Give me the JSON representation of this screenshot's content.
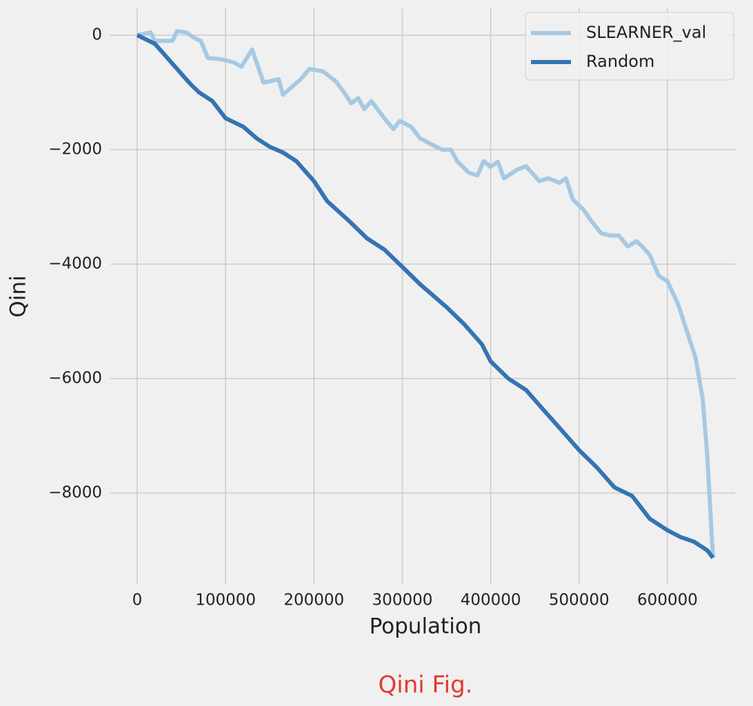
{
  "chart_data": {
    "type": "line",
    "xlabel": "Population",
    "ylabel": "Qini",
    "caption": "Qini Fig.",
    "xlim": [
      -30400,
      676500
    ],
    "ylim": [
      -9600,
      470
    ],
    "xticks": [
      0,
      100000,
      200000,
      300000,
      400000,
      500000,
      600000
    ],
    "yticks": [
      0,
      {
        "value": -2000,
        "label": "−2000"
      },
      {
        "value": -4000,
        "label": "−4000"
      },
      {
        "value": -6000,
        "label": "−6000"
      },
      {
        "value": -8000,
        "label": "−8000"
      }
    ],
    "grid": true,
    "legend": "upper right",
    "series": [
      {
        "name": "SLEARNER_val",
        "color": "#a6c9e3",
        "x": [
          0,
          15000,
          20000,
          30000,
          40000,
          45000,
          55000,
          65000,
          72000,
          80000,
          95000,
          110000,
          118000,
          130000,
          143000,
          160000,
          165000,
          185000,
          195000,
          210000,
          225000,
          235000,
          242000,
          250000,
          257000,
          265000,
          280000,
          290000,
          297000,
          310000,
          320000,
          332000,
          345000,
          355000,
          362000,
          375000,
          385000,
          392000,
          400000,
          408000,
          415000,
          430000,
          440000,
          455000,
          465000,
          478000,
          485000,
          493000,
          505000,
          515000,
          525000,
          535000,
          545000,
          555000,
          565000,
          572000,
          580000,
          590000,
          600000,
          612000,
          622000,
          632000,
          640000,
          645000,
          651500
        ],
        "values": [
          0,
          50,
          -100,
          -100,
          -100,
          70,
          50,
          -50,
          -100,
          -400,
          -420,
          -480,
          -550,
          -250,
          -830,
          -770,
          -1040,
          -770,
          -590,
          -630,
          -810,
          -1020,
          -1190,
          -1100,
          -1290,
          -1150,
          -1460,
          -1640,
          -1500,
          -1600,
          -1800,
          -1900,
          -2000,
          -2000,
          -2200,
          -2400,
          -2450,
          -2200,
          -2300,
          -2210,
          -2500,
          -2350,
          -2290,
          -2550,
          -2500,
          -2580,
          -2500,
          -2870,
          -3050,
          -3270,
          -3460,
          -3500,
          -3500,
          -3690,
          -3600,
          -3700,
          -3840,
          -4200,
          -4300,
          -4700,
          -5170,
          -5650,
          -6370,
          -7340,
          -9130
        ]
      },
      {
        "name": "Random",
        "color": "#3574b2",
        "x": [
          0,
          20000,
          40000,
          60000,
          70000,
          85000,
          100000,
          120000,
          135000,
          150000,
          165000,
          180000,
          200000,
          215000,
          240000,
          260000,
          280000,
          300000,
          320000,
          350000,
          370000,
          390000,
          400000,
          420000,
          440000,
          460000,
          480000,
          500000,
          520000,
          540000,
          560000,
          580000,
          600000,
          615000,
          630000,
          645000,
          651500
        ],
        "values": [
          0,
          -150,
          -500,
          -850,
          -1000,
          -1150,
          -1450,
          -1600,
          -1800,
          -1950,
          -2050,
          -2200,
          -2550,
          -2900,
          -3250,
          -3550,
          -3750,
          -4050,
          -4350,
          -4750,
          -5050,
          -5400,
          -5700,
          -6000,
          -6200,
          -6550,
          -6900,
          -7250,
          -7550,
          -7900,
          -8050,
          -8450,
          -8650,
          -8770,
          -8850,
          -9000,
          -9130
        ]
      }
    ]
  }
}
